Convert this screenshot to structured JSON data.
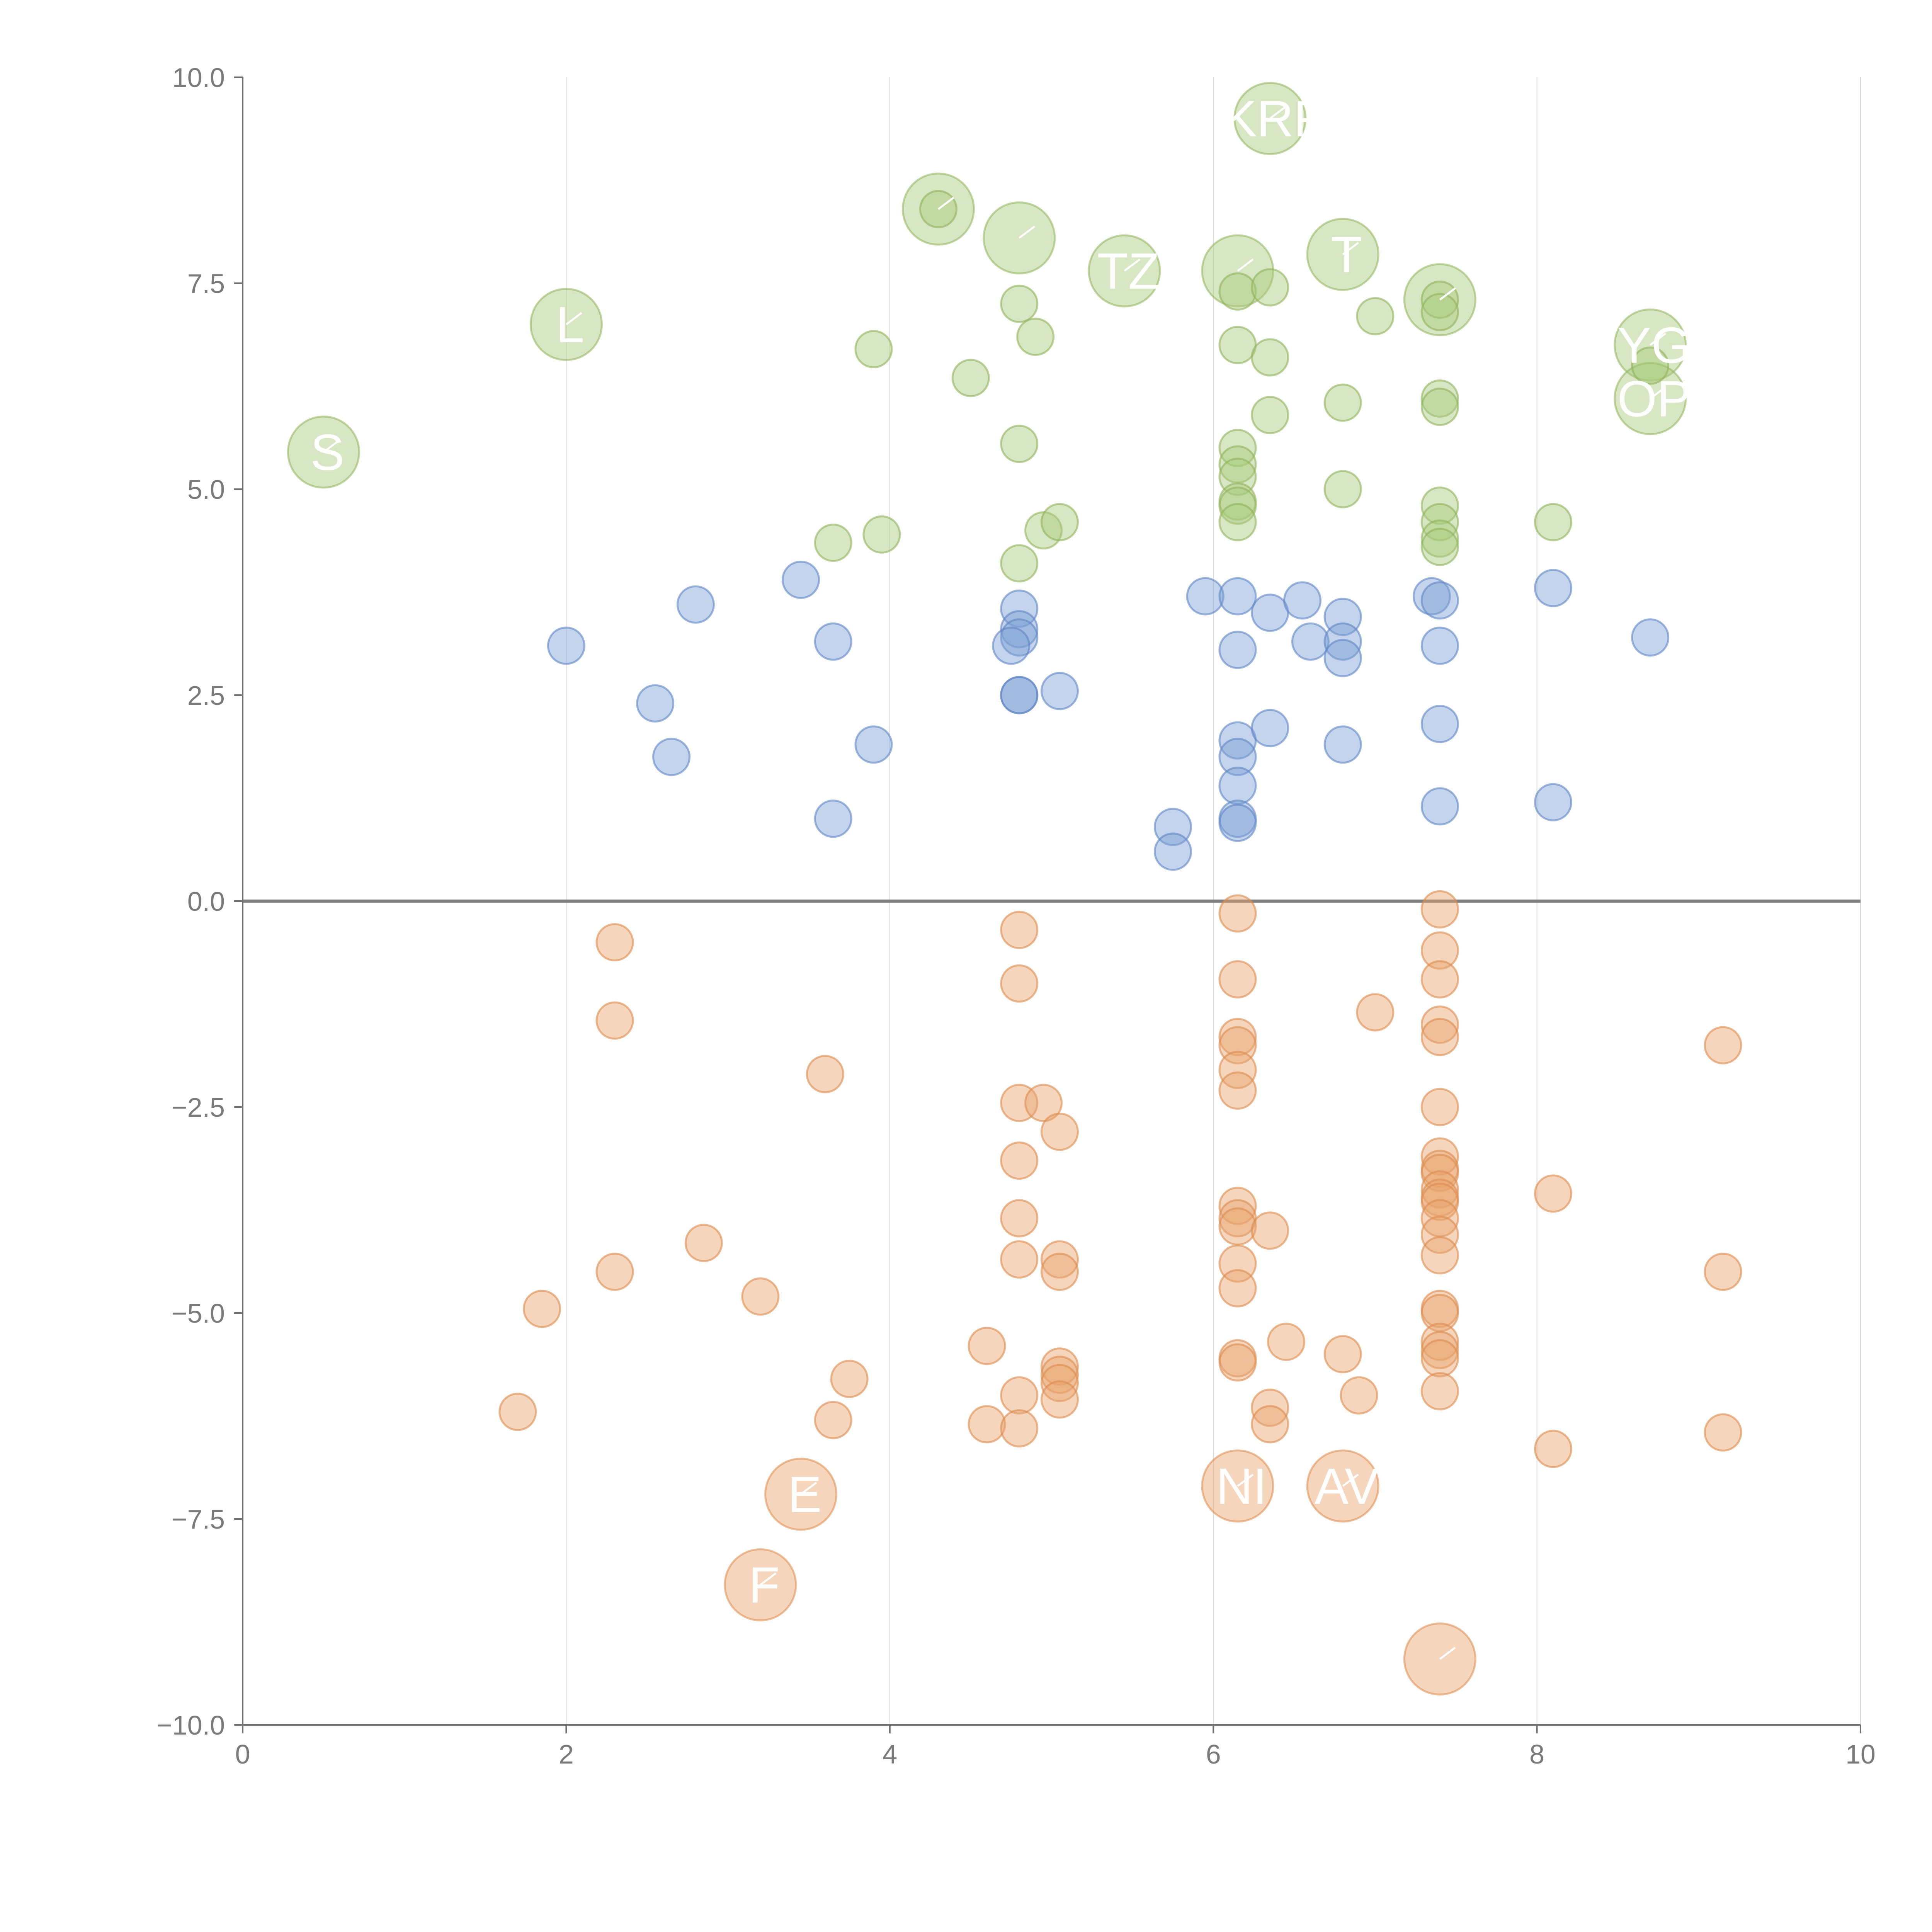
{
  "chart_data": {
    "type": "scatter",
    "title": "",
    "xlabel": "",
    "ylabel": "",
    "xlim": [
      0,
      10
    ],
    "ylim": [
      -10,
      10
    ],
    "x_ticks": [
      "0",
      "2",
      "4",
      "6",
      "8",
      "10"
    ],
    "y_ticks": [
      "10.0",
      "7.5",
      "5.0",
      "2.5",
      "0.0",
      "−2.5",
      "−5.0",
      "−7.5",
      "−10.0"
    ],
    "x_tick_values": [
      0,
      2,
      4,
      6,
      8,
      10
    ],
    "y_tick_values": [
      10,
      7.5,
      5,
      2.5,
      0,
      -2.5,
      -5,
      -7.5,
      -10
    ],
    "grid": "vertical",
    "reference_line_y": 0,
    "colors": {
      "green_fill": "#a9c97a",
      "green_stroke": "#8fb35a",
      "blue_fill": "#7b9fd4",
      "blue_stroke": "#5f86c4",
      "orange_fill": "#e8a46c",
      "orange_stroke": "#dc8a4c"
    },
    "series": [
      {
        "name": "green",
        "points": [
          [
            4.8,
            7.25
          ],
          [
            4.9,
            6.85
          ],
          [
            3.9,
            6.7
          ],
          [
            4.5,
            6.35
          ],
          [
            6.15,
            7.4
          ],
          [
            6.35,
            7.45
          ],
          [
            6.15,
            6.75
          ],
          [
            6.35,
            6.6
          ],
          [
            6.35,
            5.9
          ],
          [
            6.15,
            5.5
          ],
          [
            6.15,
            5.3
          ],
          [
            6.15,
            5.15
          ],
          [
            6.15,
            4.85
          ],
          [
            6.15,
            4.8
          ],
          [
            6.15,
            4.6
          ],
          [
            6.8,
            6.05
          ],
          [
            7.0,
            7.1
          ],
          [
            6.8,
            5.0
          ],
          [
            7.4,
            7.3
          ],
          [
            7.4,
            7.15
          ],
          [
            7.4,
            6.1
          ],
          [
            7.4,
            6.0
          ],
          [
            7.4,
            4.8
          ],
          [
            7.4,
            4.6
          ],
          [
            7.4,
            4.4
          ],
          [
            7.4,
            4.3
          ],
          [
            8.1,
            4.6
          ],
          [
            8.7,
            6.5
          ],
          [
            3.65,
            4.35
          ],
          [
            3.95,
            4.45
          ],
          [
            4.8,
            4.1
          ],
          [
            4.95,
            4.5
          ],
          [
            5.05,
            4.6
          ],
          [
            4.8,
            5.55
          ],
          [
            4.3,
            8.4
          ]
        ],
        "labeled_points": [
          [
            0.5,
            5.45
          ],
          [
            2.0,
            7.0
          ],
          [
            4.3,
            8.4
          ],
          [
            4.8,
            8.05
          ],
          [
            5.45,
            7.65
          ],
          [
            6.15,
            7.65
          ],
          [
            6.35,
            9.5
          ],
          [
            6.8,
            7.85
          ],
          [
            7.4,
            7.3
          ],
          [
            8.7,
            6.75
          ],
          [
            8.7,
            6.1
          ]
        ],
        "labels": [
          "S",
          "L",
          "",
          "",
          "TZ",
          "",
          "KRF",
          "T",
          "",
          "YG",
          "OP"
        ]
      },
      {
        "name": "blue",
        "points": [
          [
            2.0,
            3.1
          ],
          [
            2.55,
            2.4
          ],
          [
            2.65,
            1.75
          ],
          [
            2.8,
            3.6
          ],
          [
            3.45,
            3.9
          ],
          [
            3.65,
            3.15
          ],
          [
            3.65,
            1.0
          ],
          [
            3.9,
            1.9
          ],
          [
            4.8,
            3.55
          ],
          [
            4.8,
            3.3
          ],
          [
            4.8,
            3.2
          ],
          [
            4.75,
            3.1
          ],
          [
            4.8,
            2.5
          ],
          [
            4.8,
            2.5
          ],
          [
            5.05,
            2.55
          ],
          [
            5.95,
            3.7
          ],
          [
            6.15,
            3.7
          ],
          [
            6.15,
            3.05
          ],
          [
            6.15,
            1.95
          ],
          [
            6.15,
            1.75
          ],
          [
            6.15,
            1.4
          ],
          [
            6.15,
            1.0
          ],
          [
            6.15,
            0.95
          ],
          [
            5.75,
            0.9
          ],
          [
            5.75,
            0.6
          ],
          [
            6.35,
            3.5
          ],
          [
            6.55,
            3.65
          ],
          [
            6.35,
            2.1
          ],
          [
            6.6,
            3.15
          ],
          [
            6.8,
            3.45
          ],
          [
            6.8,
            3.15
          ],
          [
            6.8,
            2.95
          ],
          [
            6.8,
            1.9
          ],
          [
            7.35,
            3.7
          ],
          [
            7.4,
            3.65
          ],
          [
            7.4,
            3.1
          ],
          [
            7.4,
            2.15
          ],
          [
            7.4,
            1.15
          ],
          [
            8.1,
            3.8
          ],
          [
            8.1,
            1.2
          ],
          [
            8.7,
            3.2
          ]
        ],
        "labeled_points": [],
        "labels": []
      },
      {
        "name": "orange",
        "points": [
          [
            2.3,
            -0.5
          ],
          [
            2.3,
            -1.45
          ],
          [
            3.6,
            -2.1
          ],
          [
            2.85,
            -4.15
          ],
          [
            2.3,
            -4.5
          ],
          [
            1.85,
            -4.95
          ],
          [
            3.2,
            -4.8
          ],
          [
            1.7,
            -6.2
          ],
          [
            3.65,
            -6.3
          ],
          [
            3.75,
            -5.8
          ],
          [
            4.6,
            -5.4
          ],
          [
            4.6,
            -6.35
          ],
          [
            4.8,
            -0.35
          ],
          [
            4.8,
            -1.0
          ],
          [
            4.8,
            -2.45
          ],
          [
            4.95,
            -2.45
          ],
          [
            5.05,
            -2.8
          ],
          [
            4.8,
            -3.15
          ],
          [
            4.8,
            -3.85
          ],
          [
            4.8,
            -4.35
          ],
          [
            5.05,
            -4.35
          ],
          [
            5.05,
            -4.5
          ],
          [
            4.8,
            -6.0
          ],
          [
            4.8,
            -6.4
          ],
          [
            5.05,
            -5.65
          ],
          [
            5.05,
            -5.75
          ],
          [
            5.05,
            -5.85
          ],
          [
            5.05,
            -6.05
          ],
          [
            6.15,
            -0.15
          ],
          [
            6.15,
            -0.95
          ],
          [
            6.15,
            -1.65
          ],
          [
            6.15,
            -1.75
          ],
          [
            6.15,
            -2.05
          ],
          [
            6.15,
            -2.3
          ],
          [
            6.15,
            -3.7
          ],
          [
            6.15,
            -3.85
          ],
          [
            6.15,
            -3.95
          ],
          [
            6.15,
            -4.4
          ],
          [
            6.15,
            -4.7
          ],
          [
            6.15,
            -5.55
          ],
          [
            6.15,
            -5.6
          ],
          [
            6.35,
            -4.0
          ],
          [
            6.35,
            -6.15
          ],
          [
            6.35,
            -6.35
          ],
          [
            6.45,
            -5.35
          ],
          [
            6.8,
            -5.5
          ],
          [
            6.9,
            -6.0
          ],
          [
            7.0,
            -1.35
          ],
          [
            7.4,
            -0.1
          ],
          [
            7.4,
            -0.6
          ],
          [
            7.4,
            -0.95
          ],
          [
            7.4,
            -1.5
          ],
          [
            7.4,
            -1.65
          ],
          [
            7.4,
            -2.5
          ],
          [
            7.4,
            -3.1
          ],
          [
            7.4,
            -3.25
          ],
          [
            7.4,
            -3.3
          ],
          [
            7.4,
            -3.5
          ],
          [
            7.4,
            -3.6
          ],
          [
            7.4,
            -3.65
          ],
          [
            7.4,
            -3.85
          ],
          [
            7.4,
            -4.05
          ],
          [
            7.4,
            -4.3
          ],
          [
            7.4,
            -4.95
          ],
          [
            7.4,
            -5.0
          ],
          [
            7.4,
            -5.35
          ],
          [
            7.4,
            -5.45
          ],
          [
            7.4,
            -5.55
          ],
          [
            7.4,
            -5.95
          ],
          [
            8.1,
            -3.55
          ],
          [
            8.1,
            -6.65
          ],
          [
            9.15,
            -1.75
          ],
          [
            9.15,
            -4.5
          ],
          [
            9.15,
            -6.45
          ]
        ],
        "labeled_points": [
          [
            3.45,
            -7.2
          ],
          [
            3.2,
            -8.3
          ],
          [
            6.15,
            -7.1
          ],
          [
            6.8,
            -7.1
          ],
          [
            7.4,
            -9.2
          ]
        ],
        "labels": [
          "E",
          "F",
          "NI",
          "AV",
          ""
        ]
      }
    ]
  }
}
